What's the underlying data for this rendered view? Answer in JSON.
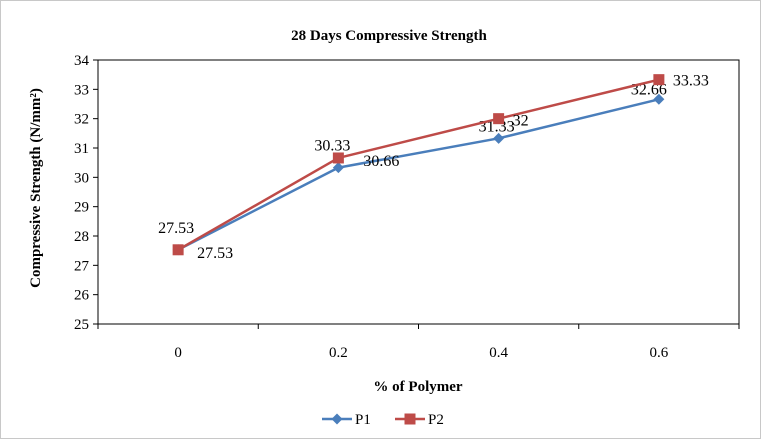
{
  "chart_data": {
    "type": "line",
    "title": "28 Days Compressive Strength",
    "xlabel": "% of Polymer",
    "ylabel": "Compressive Strength (N/mm²)",
    "categories": [
      "0",
      "0.2",
      "0.4",
      "0.6"
    ],
    "ylim": [
      25,
      34
    ],
    "yticks": [
      25,
      26,
      27,
      28,
      29,
      30,
      31,
      32,
      33,
      34
    ],
    "grid": false,
    "legend_position": "bottom",
    "series": [
      {
        "name": "P1",
        "color": "#4a7ebb",
        "marker": "diamond",
        "values": [
          27.53,
          30.33,
          31.33,
          32.66
        ],
        "labels": [
          "27.53",
          "30.33",
          "31.33",
          "32.66"
        ]
      },
      {
        "name": "P2",
        "color": "#be4b48",
        "marker": "square",
        "values": [
          27.53,
          30.66,
          32,
          33.33
        ],
        "labels": [
          "27.53",
          "30.66",
          "32",
          "33.33"
        ]
      }
    ]
  }
}
